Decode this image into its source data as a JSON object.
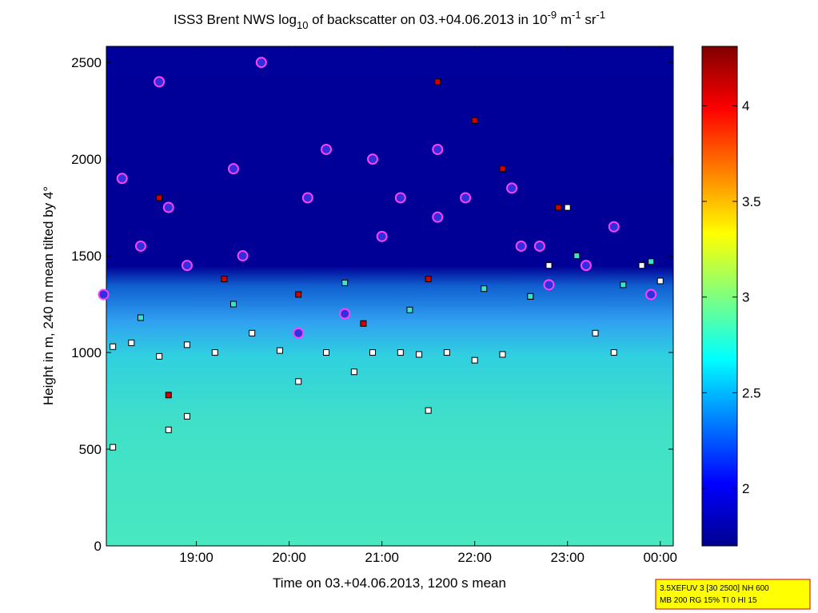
{
  "chart_data": {
    "type": "scatter",
    "title": [
      "ISS3 Brent NWS log",
      "10",
      " of backscatter on 03.+04.06.2013 in 10",
      "-9",
      " m",
      "-1",
      " sr",
      "-1"
    ],
    "x_label": "Time on 03.+04.06.2013, 1200 s mean",
    "y_label": "Height in m, 240 m mean tilted by 4°",
    "xlim": [
      18.03,
      24.14
    ],
    "xticks": [
      {
        "value": 19,
        "label": "19:00"
      },
      {
        "value": 20,
        "label": "20:00"
      },
      {
        "value": 21,
        "label": "21:00"
      },
      {
        "value": 22,
        "label": "22:00"
      },
      {
        "value": 23,
        "label": "23:00"
      },
      {
        "value": 24,
        "label": "00:00"
      }
    ],
    "ylim": [
      0,
      2583
    ],
    "yticks": [
      0,
      500,
      1000,
      1500,
      2000,
      2500
    ],
    "colorbar": {
      "lim": [
        1.7,
        4.31
      ],
      "ticks": [
        2,
        2.5,
        3,
        3.5,
        4
      ]
    },
    "annotation": [
      "3.5XEFUV 3 [30 2500] NH 600",
      "MB 200 RG 15% TI 0 HI 15"
    ],
    "series": [
      {
        "marker": "square",
        "color": "#ffffff",
        "x": [
          18.1,
          18.3,
          18.6,
          18.9,
          19.2,
          19.6,
          19.9,
          20.1,
          20.4,
          20.7,
          20.9,
          21.2,
          21.4,
          21.7,
          22.0,
          22.3,
          22.6,
          22.8,
          23.0,
          23.3,
          23.5,
          23.8,
          24.0,
          18.1,
          18.7,
          18.9,
          21.5
        ],
        "values": [
          1030,
          1050,
          980,
          1040,
          1000,
          1100,
          1010,
          850,
          1000,
          900,
          1000,
          1000,
          990,
          1000,
          960,
          990,
          1290,
          1450,
          1750,
          1100,
          1000,
          1450,
          1370,
          510,
          600,
          670,
          700
        ]
      },
      {
        "marker": "square",
        "color": "#d00000",
        "x": [
          18.6,
          19.3,
          20.1,
          20.8,
          21.6,
          22.0,
          22.3,
          22.9,
          18.7,
          21.5
        ],
        "values": [
          1800,
          1380,
          1300,
          1150,
          2400,
          2200,
          1950,
          1750,
          780,
          1380
        ]
      },
      {
        "marker": "square",
        "color": "#40e0d0",
        "x": [
          18.4,
          19.4,
          20.6,
          21.3,
          22.1,
          22.6,
          23.1,
          23.6,
          23.9
        ],
        "values": [
          1180,
          1250,
          1360,
          1220,
          1330,
          1290,
          1500,
          1350,
          1470
        ]
      },
      {
        "marker": "circle",
        "color": "#3030e0",
        "x": [
          18.0,
          18.2,
          18.4,
          18.6,
          18.7,
          18.9,
          19.4,
          19.5,
          20.2,
          20.1,
          20.4,
          20.6,
          20.9,
          21.0,
          21.2,
          21.6,
          21.6,
          21.9,
          22.4,
          22.7,
          22.8,
          23.2,
          23.5,
          23.9,
          19.7,
          22.5
        ],
        "values": [
          1300,
          1900,
          1550,
          2400,
          1750,
          1450,
          1950,
          1500,
          1800,
          1100,
          2050,
          1200,
          2000,
          1600,
          1800,
          1700,
          2050,
          1800,
          1850,
          1550,
          1350,
          1450,
          1650,
          1300,
          2500,
          1550
        ]
      }
    ]
  }
}
